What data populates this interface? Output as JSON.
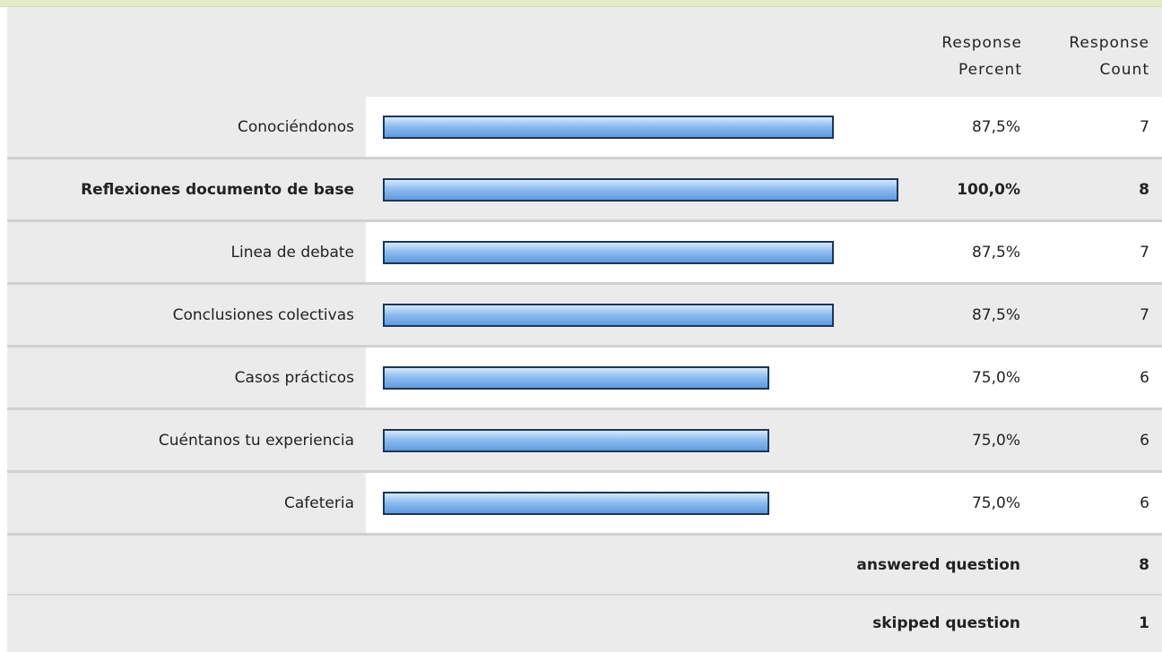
{
  "chart_data": {
    "type": "bar",
    "headers": {
      "percent": "Response Percent",
      "count": "Response Count"
    },
    "categories": [
      "Conociéndonos",
      "Reflexiones documento de base",
      "Linea de debate",
      "Conclusiones colectivas",
      "Casos prácticos",
      "Cuéntanos tu experiencia",
      "Cafeteria"
    ],
    "values": [
      87.5,
      100,
      87.5,
      87.5,
      75,
      75,
      75
    ],
    "value_labels": [
      "87,5%",
      "100,0%",
      "87,5%",
      "87,5%",
      "75,0%",
      "75,0%",
      "75,0%"
    ],
    "counts": [
      7,
      8,
      7,
      7,
      6,
      6,
      6
    ],
    "xlim": [
      0,
      100
    ],
    "color": "#8fbdf0",
    "footer": [
      {
        "label": "answered question",
        "value": 8
      },
      {
        "label": "skipped question",
        "value": 1
      }
    ]
  }
}
